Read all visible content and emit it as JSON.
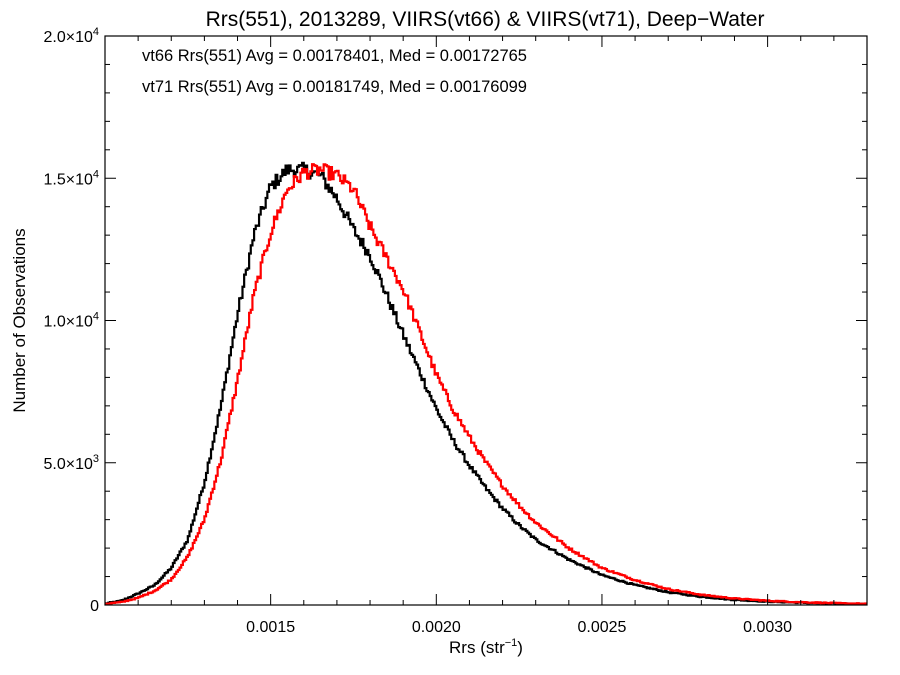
{
  "chart_data": {
    "type": "line",
    "style": "histogram-step",
    "title": "Rrs(551), 2013289, VIIRS(vt66) & VIIRS(vt71), Deep−Water",
    "xlabel": "Rrs (str",
    "xlabel_sup": "−1",
    "xlabel_end": ")",
    "ylabel": "Number of Observations",
    "xlim": [
      0.001,
      0.0033
    ],
    "ylim": [
      0,
      20000
    ],
    "x_ticks": [
      {
        "value": 0.0015,
        "label": "0.0015"
      },
      {
        "value": 0.002,
        "label": "0.0020"
      },
      {
        "value": 0.0025,
        "label": "0.0025"
      },
      {
        "value": 0.003,
        "label": "0.0030"
      }
    ],
    "y_ticks": [
      {
        "value": 0,
        "mant": "0",
        "exp": ""
      },
      {
        "value": 5000,
        "mant": "5.0×10",
        "exp": "3"
      },
      {
        "value": 10000,
        "mant": "1.0×10",
        "exp": "4"
      },
      {
        "value": 15000,
        "mant": "1.5×10",
        "exp": "4"
      },
      {
        "value": 20000,
        "mant": "2.0×10",
        "exp": "4"
      }
    ],
    "grid": false,
    "legend_position": "top-left",
    "series": [
      {
        "name": "vt66 Rrs(551) Avg = 0.00178401, Med = 0.00172765",
        "color": "#000000",
        "x": [
          0.001,
          0.00105,
          0.0011,
          0.00115,
          0.0012,
          0.00125,
          0.0013,
          0.00135,
          0.0014,
          0.00145,
          0.0015,
          0.00155,
          0.0016,
          0.00165,
          0.0017,
          0.00175,
          0.0018,
          0.00185,
          0.0019,
          0.00195,
          0.002,
          0.00205,
          0.0021,
          0.00215,
          0.0022,
          0.00225,
          0.0023,
          0.0024,
          0.0025,
          0.0026,
          0.0027,
          0.0028,
          0.0029,
          0.003,
          0.0031,
          0.0032,
          0.0033
        ],
        "y": [
          50,
          150,
          400,
          700,
          1300,
          2300,
          4300,
          7000,
          10200,
          13000,
          14700,
          15300,
          15300,
          15100,
          14300,
          13200,
          12300,
          10900,
          9500,
          8200,
          6900,
          5800,
          4900,
          4100,
          3400,
          2800,
          2300,
          1600,
          1050,
          700,
          450,
          290,
          180,
          120,
          80,
          50,
          30
        ]
      },
      {
        "name": "vt71 Rrs(551) Avg = 0.00181749, Med = 0.00176099",
        "color": "#ff0000",
        "x": [
          0.001,
          0.00105,
          0.0011,
          0.00115,
          0.0012,
          0.00125,
          0.0013,
          0.00135,
          0.0014,
          0.00145,
          0.0015,
          0.00155,
          0.0016,
          0.00165,
          0.0017,
          0.00175,
          0.0018,
          0.00185,
          0.0019,
          0.00195,
          0.002,
          0.00205,
          0.0021,
          0.00215,
          0.0022,
          0.00225,
          0.0023,
          0.0024,
          0.0025,
          0.0026,
          0.0027,
          0.0028,
          0.0029,
          0.003,
          0.0031,
          0.0032,
          0.0033
        ],
        "y": [
          40,
          100,
          250,
          500,
          900,
          1700,
          3000,
          5100,
          7900,
          10900,
          13100,
          14600,
          15200,
          15300,
          15100,
          14600,
          13300,
          12200,
          11100,
          9600,
          8100,
          6900,
          5900,
          5000,
          4200,
          3500,
          2900,
          2000,
          1300,
          880,
          560,
          360,
          230,
          150,
          100,
          65,
          40
        ]
      }
    ]
  }
}
